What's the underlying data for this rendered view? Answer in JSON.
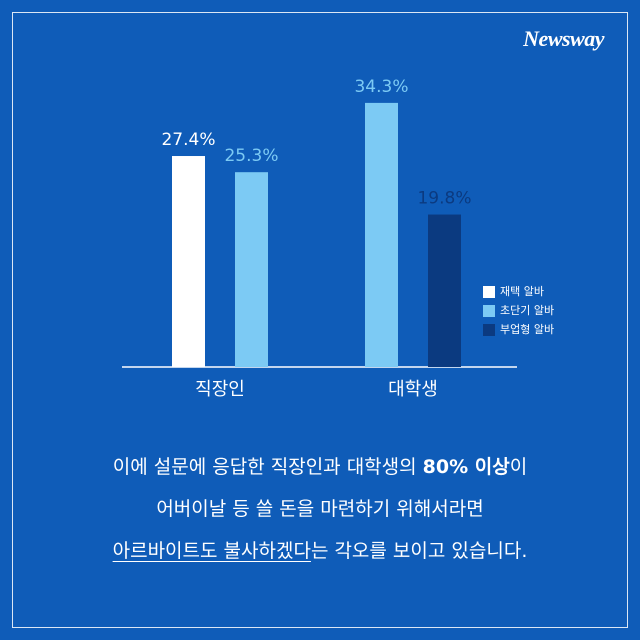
{
  "logo": "Newsway",
  "chart_data": {
    "type": "bar",
    "categories": [
      "직장인",
      "대학생"
    ],
    "series": [
      {
        "name": "재택 알바",
        "color": "#ffffff",
        "values": [
          27.4,
          null
        ],
        "value_labels": [
          "27.4%",
          null
        ]
      },
      {
        "name": "초단기 알바",
        "color": "#7ccaf4",
        "values": [
          25.3,
          34.3
        ],
        "value_labels": [
          "25.3%",
          "34.3%"
        ]
      },
      {
        "name": "부업형 알바",
        "color": "#0b3a80",
        "values": [
          null,
          19.8
        ],
        "value_labels": [
          null,
          "19.8%"
        ]
      }
    ]
  },
  "paragraph": {
    "lines": [
      [
        "이에 설문에 응답한 직장인과 대학생의 ",
        "80% 이상",
        "이"
      ],
      [
        "어버이날 등 쓸 돈을 마련하기 위해서라면"
      ],
      [
        "아르바이트도 불사하겠다",
        "는 각오를 보이고 있습니다."
      ]
    ]
  }
}
